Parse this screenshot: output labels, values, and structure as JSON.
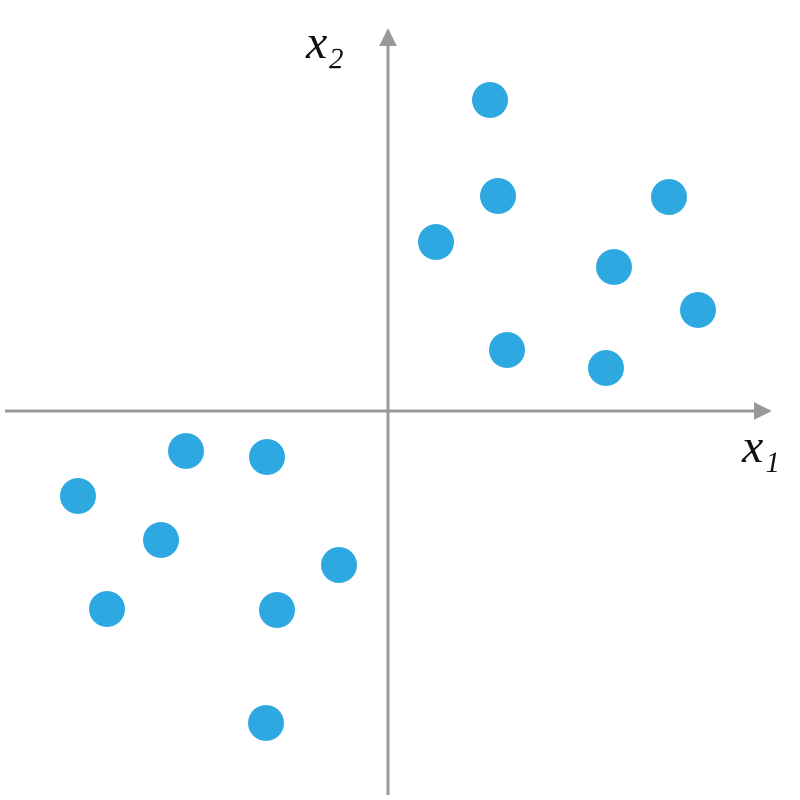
{
  "chart_data": {
    "type": "scatter",
    "x_label": "x₁",
    "y_label": "x₂",
    "x": [
      10.2,
      11.0,
      4.8,
      28.1,
      22.6,
      31.0,
      11.9,
      21.8,
      -20.2,
      -12.1,
      -31.0,
      -22.7,
      -4.9,
      -28.1,
      -11.1,
      -12.2
    ],
    "y": [
      31.1,
      21.5,
      16.9,
      21.4,
      14.4,
      10.1,
      6.1,
      4.3,
      -4.0,
      -4.6,
      -8.5,
      -12.9,
      -15.4,
      -19.8,
      -19.9,
      -31.2
    ],
    "color": "#2ea8e0",
    "xlim": [
      -38.3,
      38.2
    ],
    "ylim": [
      -38.4,
      38.1
    ]
  }
}
